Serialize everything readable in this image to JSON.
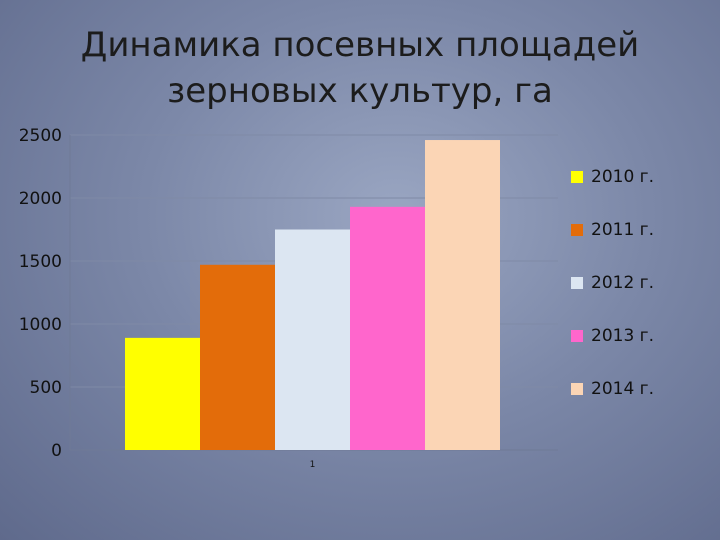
{
  "chart_data": {
    "type": "bar",
    "title_lines": [
      "Динамика посевных площадей",
      "зерновых культур, га"
    ],
    "categories": [
      "1"
    ],
    "series": [
      {
        "name": "2010 г.",
        "values": [
          890
        ],
        "color": "#ffff00"
      },
      {
        "name": "2011 г.",
        "values": [
          1470
        ],
        "color": "#e36c0a"
      },
      {
        "name": "2012 г.",
        "values": [
          1750
        ],
        "color": "#dce6f2"
      },
      {
        "name": "2013 г.",
        "values": [
          1930
        ],
        "color": "#ff66cc"
      },
      {
        "name": "2014 г.",
        "values": [
          2460
        ],
        "color": "#fbd5b5"
      }
    ],
    "ylim": [
      0,
      2500
    ],
    "yticks": [
      "0",
      "500",
      "1000",
      "1500",
      "2000",
      "2500"
    ],
    "grid": true,
    "legend_position": "right"
  }
}
